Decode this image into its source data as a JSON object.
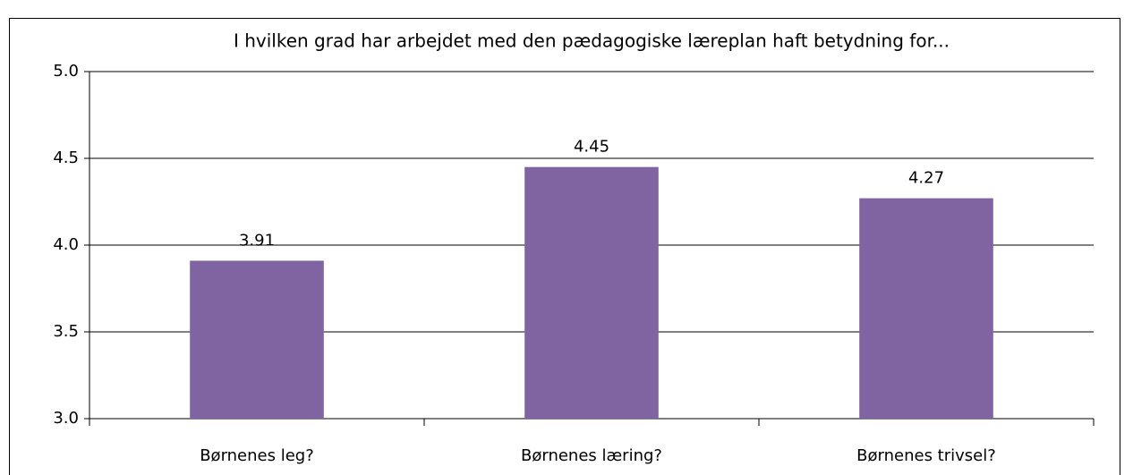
{
  "chart_data": {
    "type": "bar",
    "title": "I hvilken grad har arbejdet med den pædagogiske læreplan haft betydning for...",
    "categories": [
      "Børnenes leg?",
      "Børnenes læring?",
      "Børnenes trivsel?"
    ],
    "values": [
      3.91,
      4.45,
      4.27
    ],
    "color": "#8064a2",
    "ylim": [
      3,
      5
    ],
    "yticks": [
      {
        "value": 3,
        "label": "3.0"
      },
      {
        "value": 3.5,
        "label": "3.5"
      },
      {
        "value": 4,
        "label": "4.0"
      },
      {
        "value": 4.5,
        "label": "4.5"
      },
      {
        "value": 5,
        "label": "5.0"
      }
    ],
    "grid": true
  }
}
